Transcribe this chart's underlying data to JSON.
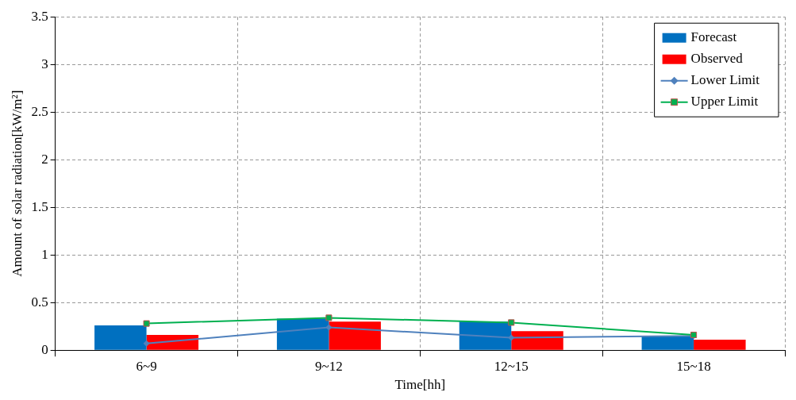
{
  "chart_data": {
    "type": "bar",
    "xlabel": "Time[hh]",
    "ylabel": "Amount of solar radiation[kW/m²]",
    "categories": [
      "6~9",
      "9~12",
      "12~15",
      "15~18"
    ],
    "series": [
      {
        "name": "Forecast",
        "color": "#0070c0",
        "values": [
          0.26,
          0.33,
          0.3,
          0.15
        ]
      },
      {
        "name": "Observed",
        "color": "#ff0000",
        "values": [
          0.16,
          0.3,
          0.2,
          0.11
        ]
      },
      {
        "name": "Lower Limit",
        "type": "line",
        "color": "#4f81bd",
        "marker": "diamond",
        "values": [
          0.07,
          0.24,
          0.13,
          0.15
        ]
      },
      {
        "name": "Upper Limit",
        "type": "line",
        "color": "#00b050",
        "marker": "square",
        "values": [
          0.28,
          0.34,
          0.29,
          0.16
        ]
      }
    ],
    "ylim": [
      0,
      3.5
    ],
    "yticks": [
      0,
      0.5,
      1,
      1.5,
      2,
      2.5,
      3,
      3.5
    ],
    "grid": true,
    "legend": "top right"
  }
}
